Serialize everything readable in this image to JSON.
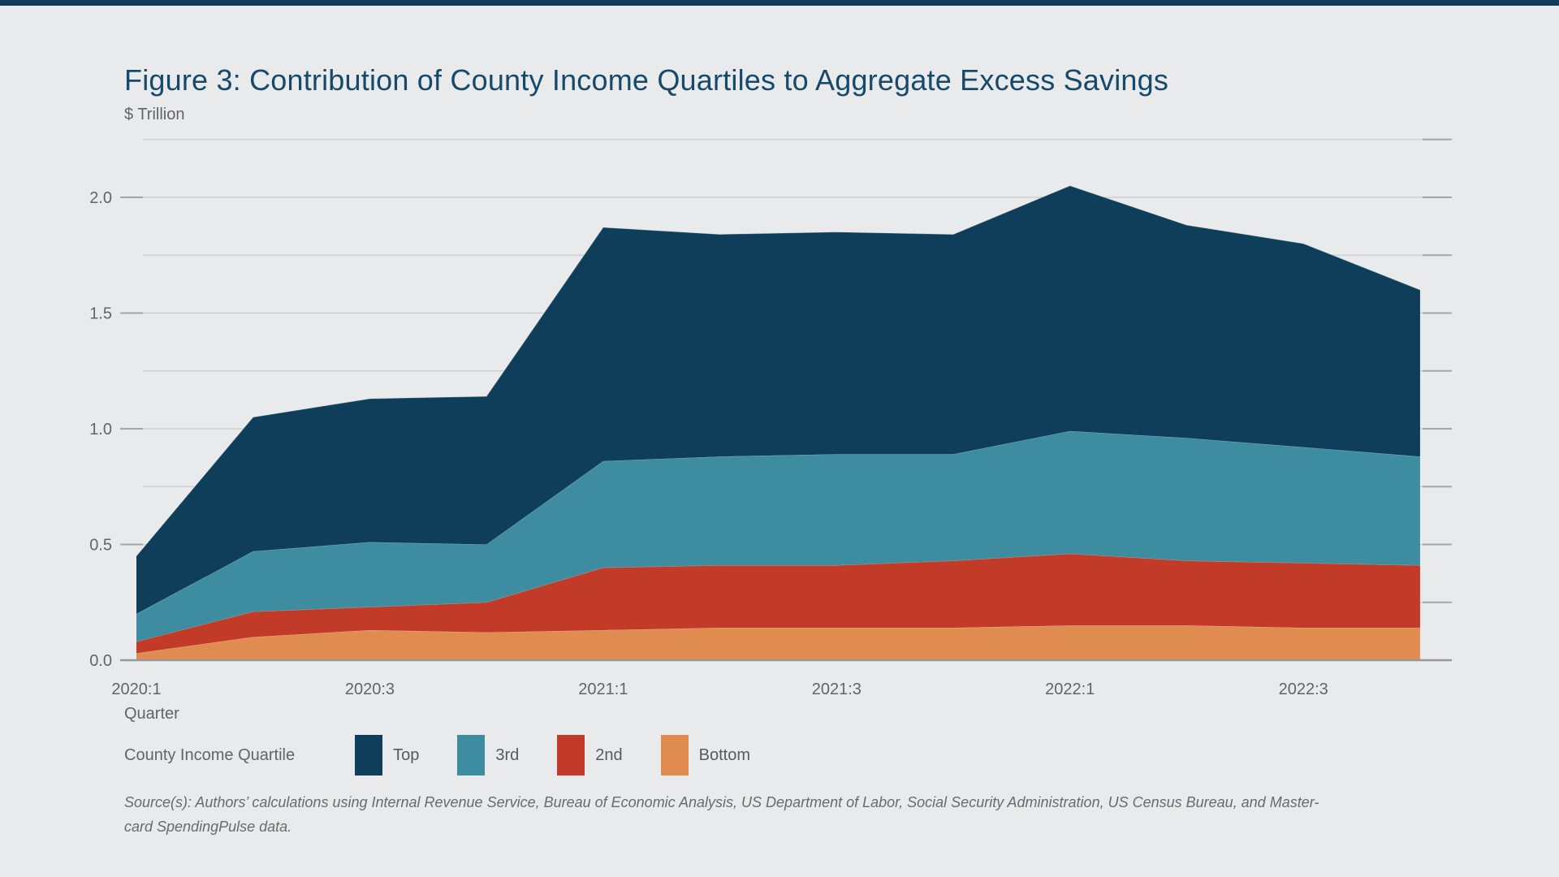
{
  "title": "Figure 3: Contribution of County Income Quartiles to Aggregate Excess Savings",
  "y_axis_unit_label": "$ Trillion",
  "x_axis_label": "Quarter",
  "legend": {
    "title": "County Income Quartile",
    "items": [
      {
        "label": "Top",
        "color": "#0e3e59"
      },
      {
        "label": "3rd",
        "color": "#3d8ca0"
      },
      {
        "label": "2nd",
        "color": "#c23b28"
      },
      {
        "label": "Bottom",
        "color": "#e08c51"
      }
    ]
  },
  "source_note_lines": [
    "Source(s): Authors’ calculations using Internal Revenue Service, Bureau of Economic Analysis, US Department of Labor, Social Security Administration, US Census Bureau, and Master-",
    "card SpendingPulse data."
  ],
  "colors": {
    "background": "#e9eaeb",
    "top_bar": "#0e3e59",
    "title_text": "#17496b",
    "axis_text": "#636466",
    "gridline": "#c9cacc",
    "axis_line": "#97999b",
    "tick_stub": "#a4a6a8"
  },
  "chart_data": {
    "type": "area",
    "stacked": true,
    "title": "Figure 3: Contribution of County Income Quartiles to Aggregate Excess Savings",
    "ylabel": "$ Trillion",
    "xlabel": "Quarter",
    "ylim": [
      0,
      2.25
    ],
    "grid_interval": 0.25,
    "grid": true,
    "legend_position": "bottom",
    "x_categories": [
      "2020:1",
      "2020:2",
      "2020:3",
      "2020:4",
      "2021:1",
      "2021:2",
      "2021:3",
      "2021:4",
      "2022:1",
      "2022:2",
      "2022:3",
      "2022:4"
    ],
    "x_tick_labels": [
      "2020:1",
      "2020:3",
      "2021:1",
      "2021:3",
      "2022:1",
      "2022:3"
    ],
    "x_tick_every": 2,
    "y_tick_labels": [
      "0.0",
      "0.5",
      "1.0",
      "1.5",
      "2.0"
    ],
    "series": [
      {
        "name": "Bottom",
        "color": "#e08c51",
        "values": [
          0.03,
          0.1,
          0.13,
          0.12,
          0.13,
          0.14,
          0.14,
          0.14,
          0.15,
          0.15,
          0.14,
          0.14
        ]
      },
      {
        "name": "2nd",
        "color": "#c23b28",
        "values": [
          0.05,
          0.11,
          0.1,
          0.13,
          0.27,
          0.27,
          0.27,
          0.29,
          0.31,
          0.28,
          0.28,
          0.27
        ]
      },
      {
        "name": "3rd",
        "color": "#3d8ca0",
        "values": [
          0.12,
          0.26,
          0.28,
          0.25,
          0.46,
          0.47,
          0.48,
          0.46,
          0.53,
          0.53,
          0.5,
          0.47
        ]
      },
      {
        "name": "Top",
        "color": "#0e3e59",
        "values": [
          0.25,
          0.58,
          0.62,
          0.64,
          1.01,
          0.96,
          0.96,
          0.95,
          1.06,
          0.92,
          0.88,
          0.72
        ]
      }
    ],
    "cumulative_totals": [
      0.45,
      1.05,
      1.13,
      1.14,
      1.87,
      1.84,
      1.85,
      1.84,
      2.05,
      1.88,
      1.8,
      1.6
    ]
  }
}
